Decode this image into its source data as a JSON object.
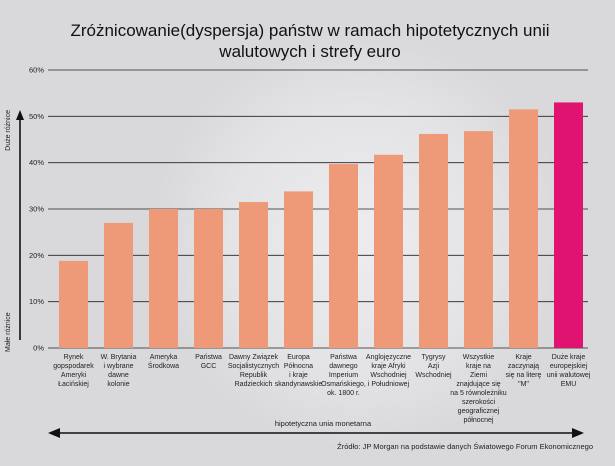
{
  "title": "Zróżnicowanie(dyspersja) państw w ramach hipotetycznych unii walutowych i strefy euro",
  "source": "Źródło: JP Morgan na podstawie danych Światowego Forum Ekonomicznego",
  "y_axis_top_label": "Duże różnice",
  "y_axis_bottom_label": "Małe różnice",
  "x_axis_label": "hipotetyczna unia monetarna",
  "colors": {
    "bar": "#ee9977",
    "highlight_bar": "#e01470",
    "grid": "#222222"
  },
  "chart_data": {
    "type": "bar",
    "ylim": [
      0,
      60
    ],
    "yticks": [
      "0%",
      "10%",
      "20%",
      "30%",
      "40%",
      "50%",
      "60%"
    ],
    "categories": [
      [
        "Rynek",
        "gopspodarek",
        "Ameryki",
        "Łacińskiej"
      ],
      [
        "W. Brytania",
        "i wybrane",
        "dawne",
        "kolonie"
      ],
      [
        "Ameryka",
        "Środkowa"
      ],
      [
        "Państwa",
        "GCC"
      ],
      [
        "Dawny Związek",
        "Socjalistycznych",
        "Republik",
        "Radzieckich"
      ],
      [
        "Europa",
        "Północna",
        "i kraje",
        "skandynawskie"
      ],
      [
        "Państwa",
        "dawnego",
        "Imperium",
        "Osmańskiego,",
        "ok. 1800 r."
      ],
      [
        "Anglojęzyczne",
        "kraje Afryki",
        "Wschodniej",
        "i Południowej"
      ],
      [
        "Tygrysy",
        "Azji",
        "Wschodniej"
      ],
      [
        "Wszystkie",
        "kraje na",
        "Ziemi",
        "znajdujące się",
        "na 5 równoleżniku",
        "szerokości",
        "geograficznej",
        "północnej"
      ],
      [
        "Kraje",
        "zaczynają",
        "się na literę",
        "\"M\""
      ],
      [
        "Duże kraje",
        "europejskiej",
        "unii walutowej",
        "EMU"
      ]
    ],
    "values": [
      18.8,
      27,
      30,
      30,
      31.5,
      33.8,
      39.7,
      41.7,
      46.2,
      46.8,
      51.5,
      53
    ],
    "highlight_index": 11,
    "grid": true
  }
}
